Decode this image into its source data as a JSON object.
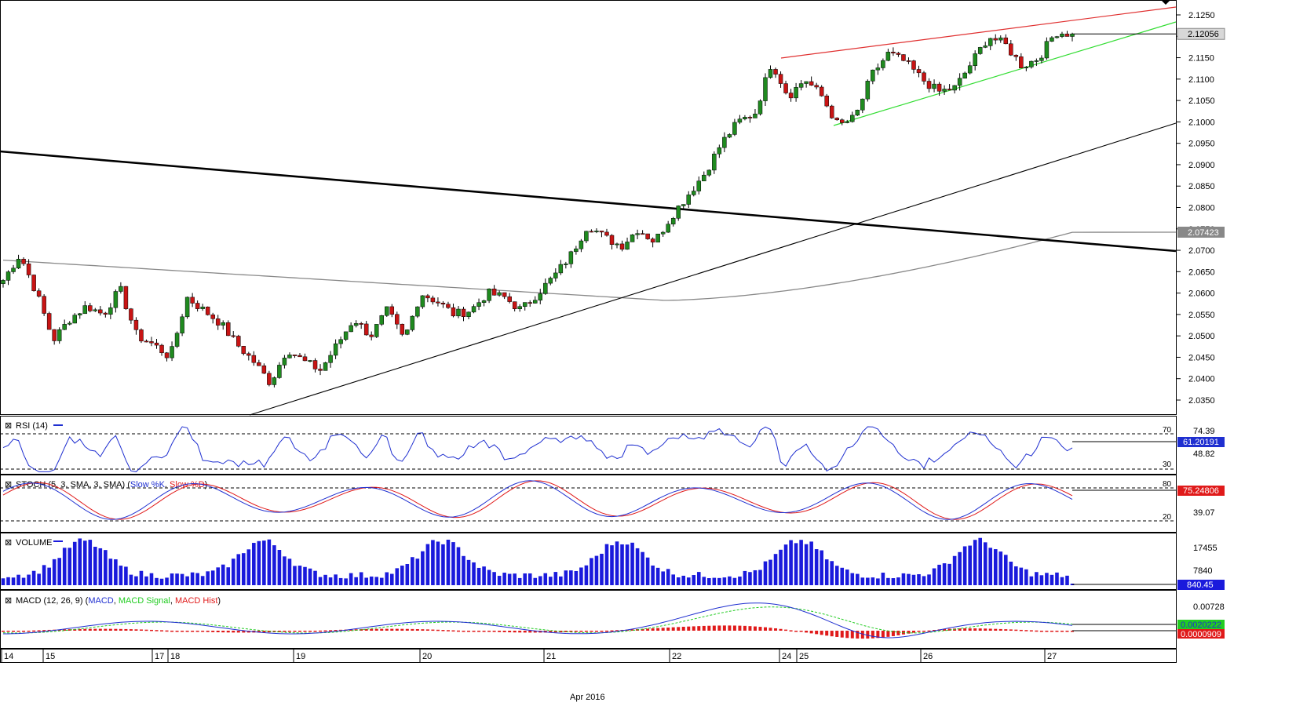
{
  "chart_data": {
    "type": "candlestick",
    "main_panel": {
      "y_axis_ticks": [
        "2.1250",
        "2.1200",
        "2.1150",
        "2.1100",
        "2.1050",
        "2.1000",
        "2.0950",
        "2.0900",
        "2.0850",
        "2.0800",
        "2.0750",
        "2.0700",
        "2.0650",
        "2.0600",
        "2.0550",
        "2.0500",
        "2.0450",
        "2.0400",
        "2.0350"
      ],
      "ylim": [
        2.032,
        2.129
      ],
      "last_price_label": "2.12056",
      "last_price": 2.12056,
      "ma_label": "2.07423",
      "ma_value": 2.07423,
      "candles_anchor_prices": [
        2.063,
        2.069,
        2.06,
        2.049,
        2.054,
        2.057,
        2.055,
        2.061,
        2.05,
        2.048,
        2.045,
        2.059,
        2.056,
        2.053,
        2.048,
        2.044,
        2.039,
        2.047,
        2.044,
        2.042,
        2.048,
        2.054,
        2.05,
        2.056,
        2.049,
        2.06,
        2.058,
        2.055,
        2.056,
        2.06,
        2.059,
        2.056,
        2.06,
        2.064,
        2.069,
        2.076,
        2.073,
        2.071,
        2.075,
        2.072,
        2.078,
        2.083,
        2.088,
        2.095,
        2.1,
        2.102,
        2.114,
        2.106,
        2.11,
        2.106,
        2.099,
        2.101,
        2.111,
        2.116,
        2.114,
        2.11,
        2.107,
        2.108,
        2.114,
        2.12,
        2.118,
        2.113,
        2.115,
        2.121,
        2.1205
      ]
    },
    "x_axis": {
      "labels": [
        "14",
        "15",
        "17",
        "18",
        "19",
        "20",
        "21",
        "22",
        "24",
        "25",
        "26",
        "27"
      ],
      "bottom_label": "Apr 2016"
    },
    "indicators": [
      {
        "name": "RSI",
        "legend": "RSI (14)",
        "levels": [
          "70",
          "30"
        ],
        "axis_ticks": [
          "74.39",
          "48.82"
        ],
        "current": "61.20191"
      },
      {
        "name": "STOCH",
        "legend_prefix": "STOCH (5, 3, SMA, 3, SMA) (",
        "series": [
          "Slow %K",
          "Slow %D"
        ],
        "levels": [
          "80",
          "20"
        ],
        "axis_ticks": [
          "39.07"
        ],
        "current": "75.24806"
      },
      {
        "name": "VOLUME",
        "legend": "VOLUME",
        "axis_ticks": [
          "17455",
          "7840"
        ],
        "current": "840.45"
      },
      {
        "name": "MACD",
        "legend_prefix": "MACD (12, 26, 9) (",
        "series": [
          "MACD",
          "MACD Signal",
          "MACD Hist"
        ],
        "axis_ticks": [
          "0.00728"
        ],
        "current_signal": "0.0020222",
        "current_hist": "0.0000909"
      }
    ],
    "colors": {
      "bull": "#1f8a1f",
      "bear": "#c81414",
      "wedge_upper": "#e03030",
      "wedge_lower": "#33dd33",
      "trend_thick": "#000000",
      "moving_average": "#888888",
      "rsi": "#1f2fd0",
      "stoch_k": "#1f2fd0",
      "stoch_d": "#e01a1a",
      "volume": "#1a1adc",
      "macd": "#1f2fd0",
      "macd_signal": "#22cc22",
      "macd_hist": "#e01a1a"
    }
  }
}
